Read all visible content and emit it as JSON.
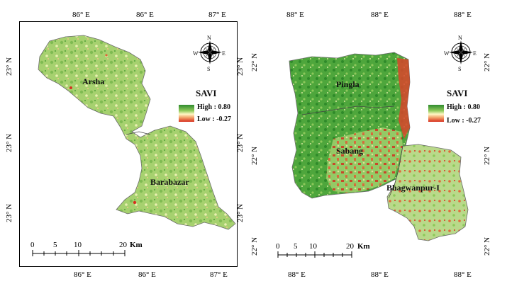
{
  "left_map": {
    "top_lon_labels": [
      "86° E",
      "86° E",
      "87° E"
    ],
    "bottom_lon_labels": [
      "86° E",
      "86° E",
      "87° E"
    ],
    "left_lat_labels": [
      "23° N",
      "23° N",
      "23° N"
    ],
    "right_lat_labels": [
      "23° N",
      "23° N",
      "23° N"
    ],
    "places": [
      "Arsha",
      "Barabazar"
    ],
    "legend": {
      "title": "SAVI",
      "high": "High : 0.80",
      "low": "Low : -0.27"
    },
    "north": {
      "n": "N",
      "s": "S",
      "e": "E",
      "w": "W"
    },
    "scale": {
      "ticks": [
        "0",
        "5",
        "10",
        "20"
      ],
      "unit": "Km"
    }
  },
  "right_map": {
    "top_lon_labels": [
      "88° E",
      "88° E",
      "88° E"
    ],
    "bottom_lon_labels": [
      "88° E",
      "88° E",
      "88° E"
    ],
    "left_lat_labels": [
      "22° N",
      "22° N",
      "22° N"
    ],
    "right_lat_labels": [
      "22° N",
      "22° N",
      "22° N"
    ],
    "places": [
      "Pingla",
      "Sabang",
      "Bhagwanpur-I"
    ],
    "legend": {
      "title": "SAVI",
      "high": "High : 0.80",
      "low": "Low : -0.27"
    },
    "north": {
      "n": "N",
      "s": "S",
      "e": "E",
      "w": "W"
    },
    "scale": {
      "ticks": [
        "0",
        "5",
        "10",
        "20"
      ],
      "unit": "Km"
    }
  },
  "colors": {
    "high": "#2e8b2e",
    "mid": "#fff7c4",
    "low": "#d7301f",
    "base": "#9fcf6e"
  }
}
